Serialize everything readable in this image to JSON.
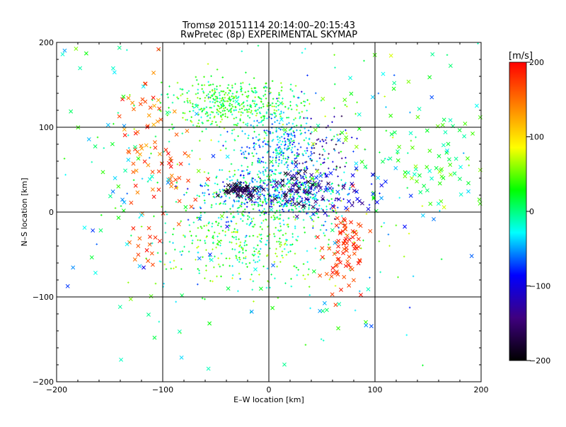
{
  "chart_data": {
    "type": "scatter",
    "title": "Tromsø 20151114 20:14:00–20:15:43",
    "subtitle": "RwPretec (8p) EXPERIMENTAL SKYMAP",
    "xlabel": "E–W location [km]",
    "ylabel": "N–S location [km]",
    "xlim": [
      -200,
      200
    ],
    "ylim": [
      -200,
      200
    ],
    "xticks": [
      "−200",
      "−100",
      "0",
      "100",
      "200"
    ],
    "yticks": [
      "200",
      "100",
      "0",
      "−100",
      "−200"
    ],
    "grid": true,
    "colorbar": {
      "unit": "[m/s]",
      "range": [
        -200,
        200
      ],
      "ticks": [
        "200",
        "100",
        "0",
        "−100",
        "−200"
      ],
      "colors": [
        "#ff0000",
        "#ff7f00",
        "#ffff00",
        "#00ff00",
        "#00ffff",
        "#0000ff",
        "#3f007f",
        "#000000"
      ]
    },
    "clusters": [
      {
        "marker": "plus",
        "x": -35,
        "y": 128,
        "sx": 32,
        "sy": 14,
        "n": 420,
        "v": [
          -20,
          70
        ]
      },
      {
        "marker": "plus",
        "x": 10,
        "y": 78,
        "sx": 22,
        "sy": 22,
        "n": 320,
        "v": [
          -90,
          20
        ]
      },
      {
        "marker": "plus",
        "x": 10,
        "y": 22,
        "sx": 32,
        "sy": 14,
        "n": 520,
        "v": [
          -110,
          30
        ]
      },
      {
        "marker": "plus",
        "x": -15,
        "y": -30,
        "sx": 45,
        "sy": 30,
        "n": 420,
        "v": [
          -40,
          80
        ]
      },
      {
        "marker": "plus",
        "x": 50,
        "y": 55,
        "sx": 15,
        "sy": 30,
        "n": 90,
        "v": [
          -180,
          -90
        ]
      },
      {
        "marker": "plus",
        "x": 0,
        "y": 40,
        "sx": 90,
        "sy": 80,
        "n": 260,
        "v": [
          -80,
          80
        ]
      },
      {
        "marker": "cross",
        "x": -25,
        "y": 25,
        "sx": 10,
        "sy": 4,
        "n": 60,
        "v": [
          -200,
          -130
        ]
      },
      {
        "marker": "cross",
        "x": 30,
        "y": 25,
        "sx": 12,
        "sy": 12,
        "n": 50,
        "v": [
          -200,
          -120
        ]
      },
      {
        "marker": "cross",
        "x": 72,
        "y": -45,
        "sx": 10,
        "sy": 25,
        "n": 80,
        "v": [
          160,
          200
        ]
      },
      {
        "marker": "cross",
        "x": -115,
        "y": 110,
        "sx": 12,
        "sy": 35,
        "n": 45,
        "v": [
          120,
          200
        ]
      },
      {
        "marker": "cross",
        "x": -90,
        "y": 40,
        "sx": 15,
        "sy": 25,
        "n": 35,
        "v": [
          130,
          200
        ]
      },
      {
        "marker": "cross",
        "x": -115,
        "y": -35,
        "sx": 10,
        "sy": 10,
        "n": 15,
        "v": [
          140,
          200
        ]
      },
      {
        "marker": "cross",
        "x": 170,
        "y": 55,
        "sx": 25,
        "sy": 30,
        "n": 60,
        "v": [
          -20,
          60
        ]
      },
      {
        "marker": "cross",
        "x": 100,
        "y": 80,
        "sx": 60,
        "sy": 70,
        "n": 80,
        "v": [
          -80,
          80
        ]
      },
      {
        "marker": "cross",
        "x": -150,
        "y": 40,
        "sx": 40,
        "sy": 90,
        "n": 60,
        "v": [
          -60,
          60
        ]
      },
      {
        "marker": "cross",
        "x": 75,
        "y": 25,
        "sx": 25,
        "sy": 15,
        "n": 30,
        "v": [
          -140,
          -70
        ]
      },
      {
        "marker": "cross",
        "x": 0,
        "y": -90,
        "sx": 80,
        "sy": 50,
        "n": 40,
        "v": [
          -100,
          60
        ]
      }
    ]
  }
}
